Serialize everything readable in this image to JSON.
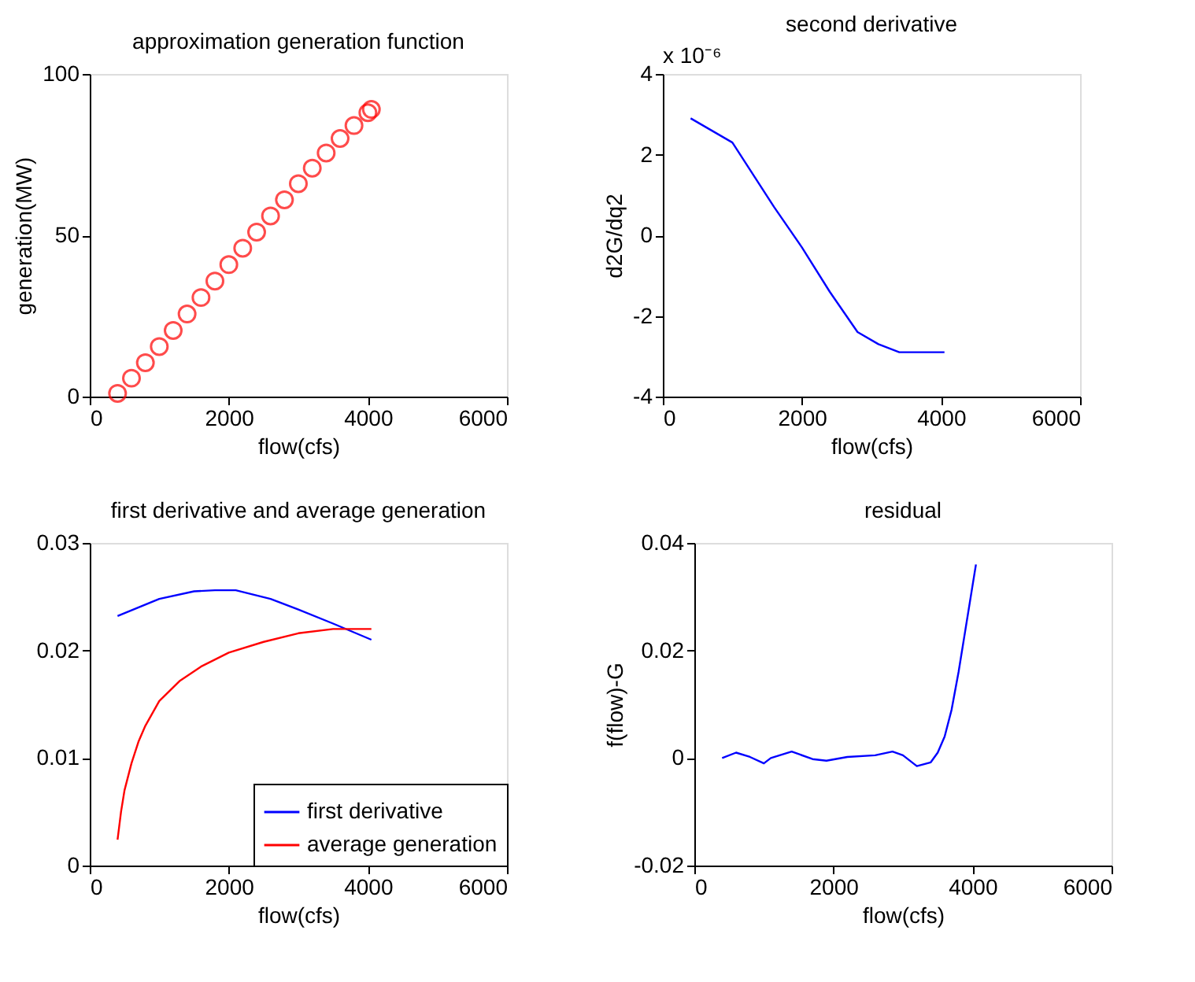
{
  "chart_data": [
    {
      "type": "scatter",
      "title": "approximation generation function",
      "xlabel": "flow(cfs)",
      "ylabel": "generation(MW)",
      "marker": "circle",
      "grid": false,
      "legend": false,
      "xlim": [
        0,
        6000
      ],
      "xticks": [
        0,
        2000,
        4000,
        6000
      ],
      "ylim": [
        0,
        100
      ],
      "yticks": [
        0,
        50,
        100
      ],
      "series": [
        {
          "color": "#ff0000",
          "x": [
            400,
            600,
            800,
            1000,
            1200,
            1400,
            1600,
            1800,
            2000,
            2200,
            2400,
            2600,
            2800,
            3000,
            3200,
            3400,
            3600,
            3800,
            4000,
            4050
          ],
          "values": [
            1,
            5.7,
            10.5,
            15.5,
            20.5,
            25.6,
            30.7,
            35.8,
            40.9,
            46,
            51,
            56,
            61,
            66,
            70.8,
            75.5,
            80,
            84,
            88,
            89
          ]
        }
      ]
    },
    {
      "type": "line",
      "title": "second derivative",
      "xlabel": "flow(cfs)",
      "ylabel": "d2G/dq2",
      "annotations": [
        "x 10⁻⁶"
      ],
      "grid": false,
      "legend": false,
      "xlim": [
        0,
        6000
      ],
      "xticks": [
        0,
        2000,
        4000,
        6000
      ],
      "ylim": [
        -4,
        4
      ],
      "yticks": [
        -4,
        -2,
        0,
        2,
        4
      ],
      "series": [
        {
          "color": "#0000ff",
          "x": [
            400,
            1000,
            1300,
            1600,
            2000,
            2400,
            2800,
            3100,
            3400,
            4050
          ],
          "values": [
            2.9,
            2.3,
            1.5,
            0.7,
            -0.3,
            -1.4,
            -2.4,
            -2.7,
            -2.9,
            -2.9
          ]
        }
      ]
    },
    {
      "type": "line",
      "title": "first derivative and average generation",
      "xlabel": "flow(cfs)",
      "grid": false,
      "legend": "bottom right",
      "xlim": [
        0,
        6000
      ],
      "xticks": [
        0,
        2000,
        4000,
        6000
      ],
      "ylim": [
        0,
        0.03
      ],
      "yticks": [
        0,
        0.01,
        0.02,
        0.03
      ],
      "series": [
        {
          "name": "first derivative",
          "color": "#0000ff",
          "x": [
            400,
            1000,
            1500,
            1800,
            2100,
            2600,
            3000,
            3500,
            4050
          ],
          "values": [
            0.0232,
            0.0248,
            0.0255,
            0.0256,
            0.0256,
            0.0248,
            0.0238,
            0.0225,
            0.021
          ]
        },
        {
          "name": "average generation",
          "color": "#ff0000",
          "x": [
            400,
            450,
            500,
            600,
            700,
            800,
            1000,
            1300,
            1600,
            2000,
            2500,
            3000,
            3500,
            4050
          ],
          "values": [
            0.0024,
            0.005,
            0.007,
            0.0095,
            0.0115,
            0.013,
            0.0153,
            0.0172,
            0.0185,
            0.0198,
            0.0208,
            0.0216,
            0.022,
            0.022
          ]
        }
      ]
    },
    {
      "type": "line",
      "title": "residual",
      "xlabel": "flow(cfs)",
      "ylabel": "f(flow)-G",
      "grid": false,
      "legend": false,
      "xlim": [
        0,
        6000
      ],
      "xticks": [
        0,
        2000,
        4000,
        6000
      ],
      "ylim": [
        -0.02,
        0.04
      ],
      "yticks": [
        -0.02,
        0,
        0.02,
        0.04
      ],
      "series": [
        {
          "color": "#0000ff",
          "x": [
            400,
            600,
            800,
            1000,
            1100,
            1400,
            1700,
            1900,
            2200,
            2600,
            2850,
            3000,
            3200,
            3400,
            3500,
            3600,
            3700,
            3800,
            3900,
            4000,
            4050
          ],
          "values": [
            0,
            0.001,
            0.0002,
            -0.001,
            0,
            0.0012,
            -0.0002,
            -0.0005,
            0.0002,
            0.0005,
            0.0012,
            0.0005,
            -0.0015,
            -0.0008,
            0.001,
            0.004,
            0.009,
            0.016,
            0.024,
            0.032,
            0.036
          ]
        }
      ]
    }
  ]
}
